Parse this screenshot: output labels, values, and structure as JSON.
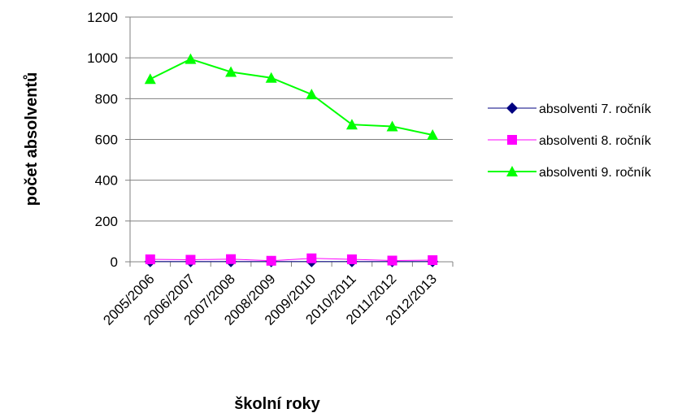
{
  "chart_data": {
    "type": "line",
    "xlabel": "školní roky",
    "ylabel": "počet absolventů",
    "categories": [
      "2005/2006",
      "2006/2007",
      "2007/2008",
      "2008/2009",
      "2009/2010",
      "2010/2011",
      "2011/2012",
      "2012/2013"
    ],
    "ylim": [
      0,
      1200
    ],
    "yticks": [
      "0",
      "200",
      "400",
      "600",
      "800",
      "1000",
      "1200"
    ],
    "grid": true,
    "legend_position": "right",
    "series": [
      {
        "name": "absolventi 7. ročník",
        "marker": "diamond",
        "color": "#000080",
        "values": [
          1,
          1,
          1,
          1,
          1,
          1,
          1,
          1
        ]
      },
      {
        "name": "absolventi 8. ročník",
        "marker": "square",
        "color": "#ff00ff",
        "values": [
          12,
          10,
          13,
          5,
          17,
          12,
          6,
          8
        ]
      },
      {
        "name": "absolventi 9. ročník",
        "marker": "triangle",
        "color": "#00ff00",
        "values": [
          896,
          994,
          931,
          902,
          821,
          673,
          664,
          622
        ]
      }
    ]
  }
}
